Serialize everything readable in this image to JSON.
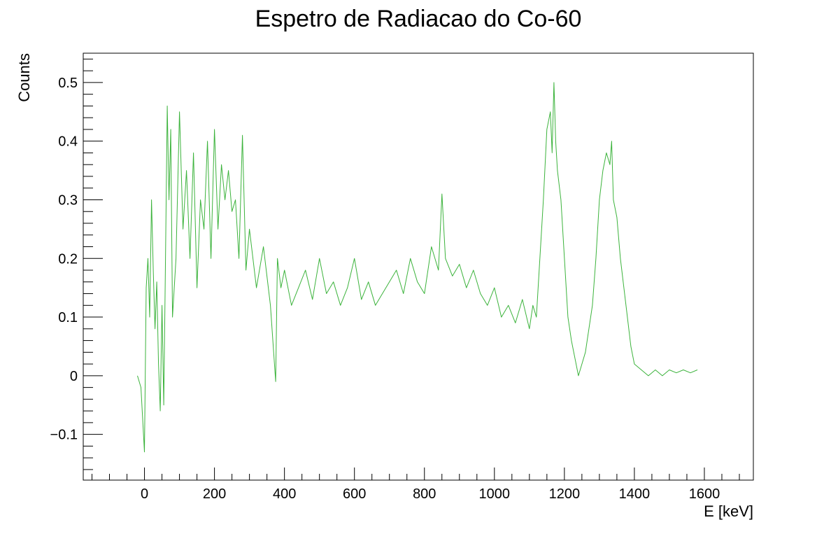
{
  "chart_data": {
    "type": "line",
    "title": "Espetro de Radiacao do Co-60",
    "xlabel": "E [keV]",
    "ylabel": "Counts",
    "xlim": [
      -175,
      1740
    ],
    "ylim": [
      -0.178,
      0.55
    ],
    "grid": false,
    "x_ticks": [
      0,
      200,
      400,
      600,
      800,
      1000,
      1200,
      1400,
      1600
    ],
    "x_tick_labels": [
      "0",
      "200",
      "400",
      "600",
      "800",
      "1000",
      "1200",
      "1400",
      "1600"
    ],
    "y_ticks": [
      -0.1,
      0,
      0.1,
      0.2,
      0.3,
      0.4,
      0.5
    ],
    "y_tick_labels": [
      "−0.1",
      "0",
      "0.1",
      "0.2",
      "0.3",
      "0.4",
      "0.5"
    ],
    "series": [
      {
        "color": "#3cb33c",
        "x": [
          -20,
          -10,
          0,
          5,
          10,
          15,
          20,
          25,
          30,
          35,
          40,
          45,
          50,
          55,
          60,
          65,
          70,
          75,
          80,
          90,
          100,
          110,
          120,
          130,
          140,
          150,
          160,
          170,
          180,
          190,
          200,
          210,
          220,
          230,
          240,
          250,
          260,
          270,
          280,
          290,
          300,
          320,
          340,
          360,
          375,
          380,
          390,
          400,
          420,
          440,
          460,
          480,
          500,
          520,
          540,
          560,
          580,
          600,
          620,
          640,
          660,
          680,
          700,
          720,
          740,
          760,
          780,
          800,
          820,
          840,
          850,
          860,
          880,
          900,
          920,
          940,
          960,
          980,
          1000,
          1020,
          1040,
          1060,
          1080,
          1100,
          1110,
          1120,
          1130,
          1140,
          1150,
          1160,
          1165,
          1170,
          1175,
          1180,
          1190,
          1200,
          1210,
          1220,
          1230,
          1240,
          1250,
          1260,
          1270,
          1280,
          1290,
          1300,
          1310,
          1320,
          1330,
          1335,
          1340,
          1350,
          1360,
          1370,
          1380,
          1390,
          1400,
          1420,
          1440,
          1460,
          1480,
          1500,
          1520,
          1540,
          1560,
          1580
        ],
        "y": [
          0.0,
          -0.02,
          -0.13,
          0.15,
          0.2,
          0.1,
          0.3,
          0.18,
          0.08,
          0.16,
          0.02,
          -0.06,
          0.12,
          -0.05,
          0.2,
          0.46,
          0.3,
          0.42,
          0.1,
          0.2,
          0.45,
          0.25,
          0.35,
          0.2,
          0.38,
          0.15,
          0.3,
          0.25,
          0.4,
          0.2,
          0.42,
          0.25,
          0.36,
          0.3,
          0.35,
          0.28,
          0.3,
          0.2,
          0.41,
          0.18,
          0.25,
          0.15,
          0.22,
          0.12,
          -0.01,
          0.2,
          0.15,
          0.18,
          0.12,
          0.15,
          0.18,
          0.13,
          0.2,
          0.14,
          0.16,
          0.12,
          0.15,
          0.2,
          0.13,
          0.16,
          0.12,
          0.14,
          0.16,
          0.18,
          0.14,
          0.2,
          0.16,
          0.14,
          0.22,
          0.18,
          0.31,
          0.2,
          0.17,
          0.19,
          0.15,
          0.18,
          0.14,
          0.12,
          0.15,
          0.1,
          0.12,
          0.09,
          0.13,
          0.08,
          0.12,
          0.1,
          0.2,
          0.3,
          0.42,
          0.45,
          0.38,
          0.5,
          0.4,
          0.35,
          0.3,
          0.2,
          0.1,
          0.06,
          0.03,
          0.0,
          0.02,
          0.04,
          0.08,
          0.12,
          0.2,
          0.3,
          0.35,
          0.38,
          0.36,
          0.4,
          0.3,
          0.27,
          0.2,
          0.15,
          0.1,
          0.05,
          0.02,
          0.01,
          0.0,
          0.01,
          0.0,
          0.01,
          0.005,
          0.01,
          0.005,
          0.01
        ]
      }
    ]
  }
}
